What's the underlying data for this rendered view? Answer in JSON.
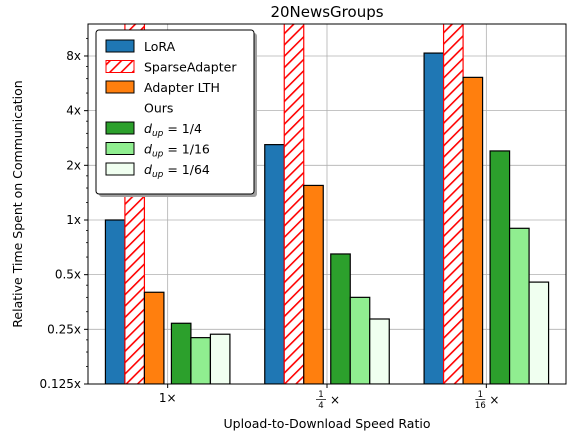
{
  "chart_data": {
    "type": "bar",
    "title": "20NewsGroups",
    "xlabel": "Upload-to-Download Speed Ratio",
    "ylabel": "Relative Time Spent on Communication",
    "yscale": "log2",
    "ylim": [
      0.125,
      12
    ],
    "yticks": [
      {
        "value": 0.125,
        "label": "0.125x"
      },
      {
        "value": 0.25,
        "label": "0.25x"
      },
      {
        "value": 0.5,
        "label": "0.5x"
      },
      {
        "value": 1,
        "label": "1x"
      },
      {
        "value": 2,
        "label": "2x"
      },
      {
        "value": 4,
        "label": "4x"
      },
      {
        "value": 8,
        "label": "8x"
      }
    ],
    "categories": [
      {
        "main": "1×",
        "num": "",
        "den": ""
      },
      {
        "main": "×",
        "num": "1",
        "den": "4"
      },
      {
        "main": "×",
        "num": "1",
        "den": "16"
      }
    ],
    "grid": true,
    "legend_position": "top-left",
    "legend_group_header": "Ours",
    "series": [
      {
        "name": "LoRA",
        "values": [
          1.0,
          2.6,
          8.3
        ],
        "color": "#1f77b4",
        "hatch": false
      },
      {
        "name": "SparseAdapter",
        "values": [
          14,
          14,
          14
        ],
        "color": "#ffffff",
        "hatch": true,
        "hatch_color": "#ff0000"
      },
      {
        "name": "Adapter LTH",
        "values": [
          0.4,
          1.55,
          6.1
        ],
        "color": "#ff7f0e",
        "hatch": false
      },
      {
        "name": "d_up = 1/4",
        "sub": "up",
        "frac": "1/4",
        "values": [
          0.27,
          0.65,
          2.4
        ],
        "color": "#2ca02c",
        "hatch": false
      },
      {
        "name": "d_up = 1/16",
        "sub": "up",
        "frac": "1/16",
        "values": [
          0.225,
          0.375,
          0.9
        ],
        "color": "#90ee90",
        "hatch": false
      },
      {
        "name": "d_up = 1/64",
        "sub": "up",
        "frac": "1/64",
        "values": [
          0.235,
          0.285,
          0.455
        ],
        "color": "#f0fff0",
        "hatch": false
      }
    ]
  }
}
